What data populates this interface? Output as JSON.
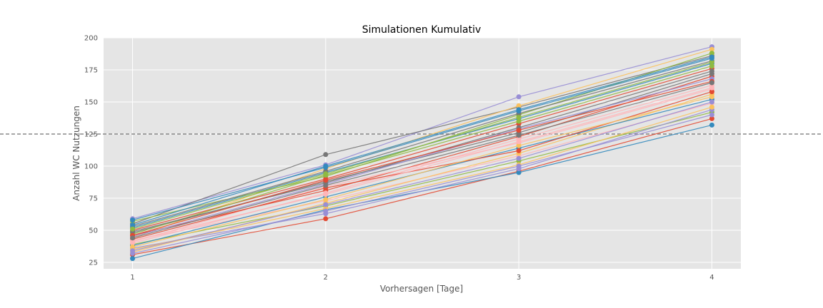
{
  "chart_data": {
    "type": "line",
    "title": "Simulationen Kumulativ",
    "xlabel": "Vorhersagen [Tage]",
    "ylabel": "Anzahl WC Nutzungen",
    "x": [
      1,
      2,
      3,
      4
    ],
    "x_ticks": [
      1,
      2,
      3,
      4
    ],
    "y_ticks": [
      25,
      50,
      75,
      100,
      125,
      150,
      175,
      200
    ],
    "xlim": [
      0.85,
      4.15
    ],
    "ylim": [
      20,
      200
    ],
    "grid": true,
    "reference_line": {
      "y": 125,
      "style": "dashed",
      "color": "#888888"
    },
    "palette": [
      "#E24A33",
      "#348ABD",
      "#988ED5",
      "#777777",
      "#FBC15E",
      "#8EBA42",
      "#FFB5B8"
    ],
    "series": [
      {
        "values": [
          31,
          59,
          96,
          137
        ]
      },
      {
        "values": [
          28,
          66,
          95,
          132
        ]
      },
      {
        "values": [
          59,
          101,
          154,
          193
        ]
      },
      {
        "values": [
          55,
          109,
          146,
          186
        ]
      },
      {
        "values": [
          44,
          98,
          147,
          191
        ]
      },
      {
        "values": [
          39,
          69,
          104,
          142
        ]
      },
      {
        "values": [
          42,
          73,
          108,
          149
        ]
      },
      {
        "values": [
          46,
          81,
          123,
          170
        ]
      },
      {
        "values": [
          52,
          95,
          137,
          180
        ]
      },
      {
        "values": [
          36,
          63,
          98,
          144
        ]
      },
      {
        "values": [
          48,
          88,
          126,
          172
        ]
      },
      {
        "values": [
          33,
          71,
          110,
          156
        ]
      },
      {
        "values": [
          57,
          92,
          140,
          188
        ]
      },
      {
        "values": [
          41,
          84,
          118,
          160
        ]
      },
      {
        "values": [
          50,
          90,
          133,
          176
        ]
      },
      {
        "values": [
          38,
          76,
          114,
          152
        ]
      },
      {
        "values": [
          45,
          86,
          129,
          168
        ]
      },
      {
        "values": [
          53,
          96,
          141,
          182
        ]
      },
      {
        "values": [
          35,
          67,
          101,
          146
        ]
      },
      {
        "values": [
          47,
          93,
          135,
          178
        ]
      },
      {
        "values": [
          40,
          79,
          121,
          163
        ]
      },
      {
        "values": [
          43,
          83,
          112,
          158
        ]
      },
      {
        "values": [
          54,
          100,
          144,
          185
        ]
      },
      {
        "values": [
          32,
          65,
          100,
          140
        ]
      },
      {
        "values": [
          49,
          87,
          130,
          174
        ]
      },
      {
        "values": [
          37,
          74,
          116,
          154
        ]
      },
      {
        "values": [
          51,
          94,
          138,
          181
        ]
      },
      {
        "values": [
          42,
          78,
          119,
          161
        ]
      },
      {
        "values": [
          46,
          89,
          128,
          166
        ]
      },
      {
        "values": [
          58,
          99,
          143,
          184
        ]
      },
      {
        "values": [
          34,
          70,
          106,
          150
        ]
      },
      {
        "values": [
          44,
          85,
          124,
          165
        ]
      }
    ]
  }
}
